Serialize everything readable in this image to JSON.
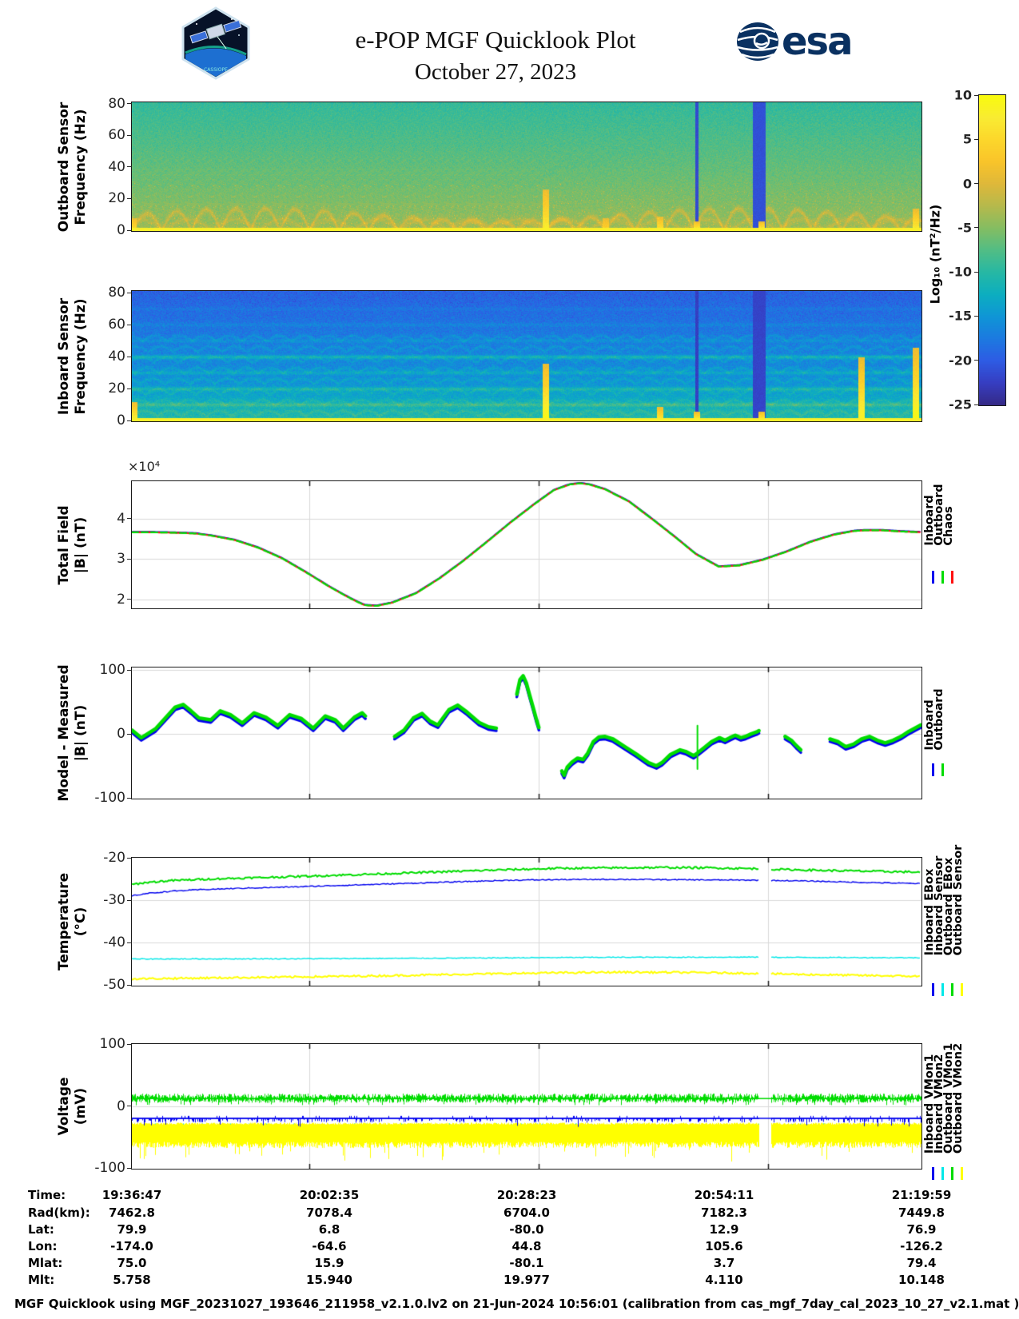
{
  "header": {
    "title": "e-POP MGF Quicklook Plot",
    "date": "October 27, 2023",
    "patch_label": "CASSIOPE",
    "esa_label": "esa"
  },
  "colorbar": {
    "label": "Log₁₀ (nT²/Hz)",
    "ticks": [
      "10",
      "5",
      "0",
      "-5",
      "-10",
      "-15",
      "-20",
      "-25"
    ],
    "range": [
      10,
      -25
    ]
  },
  "colors": {
    "blue": "#0000EE",
    "green": "#00DC00",
    "red": "#FF1010",
    "cyan": "#00E8E8",
    "yellow": "#FFFF00",
    "axis": "#262626",
    "grid": "#d9d9d9",
    "parula": [
      "#352a87",
      "#363ec2",
      "#2e5ce4",
      "#1c7ae0",
      "#0f96d6",
      "#0caec0",
      "#27b8a4",
      "#52bd85",
      "#85bd62",
      "#b6b94c",
      "#dfb83a",
      "#f9c42a",
      "#fcd72b",
      "#f9ec32",
      "#f9fb0e"
    ]
  },
  "table": {
    "rows": [
      {
        "label": "Time:",
        "values": [
          "19:36:47",
          "20:02:35",
          "20:28:23",
          "20:54:11",
          "21:19:59"
        ]
      },
      {
        "label": "Rad(km):",
        "values": [
          "7462.8",
          "7078.4",
          "6704.0",
          "7182.3",
          "7449.8"
        ]
      },
      {
        "label": "Lat:",
        "values": [
          "79.9",
          "6.8",
          "-80.0",
          "12.9",
          "76.9"
        ]
      },
      {
        "label": "Lon:",
        "values": [
          "-174.0",
          "-64.6",
          "44.8",
          "105.6",
          "-126.2"
        ]
      },
      {
        "label": "Mlat:",
        "values": [
          "75.0",
          "15.9",
          "-80.1",
          "3.7",
          "79.4"
        ]
      },
      {
        "label": "Mlt:",
        "values": [
          "5.758",
          "15.940",
          "19.977",
          "4.110",
          "10.148"
        ]
      }
    ]
  },
  "footer": "MGF Quicklook using MGF_20231027_193646_211958_v2.1.0.lv2 on 21-Jun-2024 10:56:01 (calibration from cas_mgf_7day_cal_2023_10_27_v2.1.mat )",
  "chart_data": [
    {
      "id": "outboard_spectrogram",
      "type": "heatmap",
      "ylabel": [
        "Outboard Sensor",
        "Frequency (Hz)"
      ],
      "yticks": [
        80,
        60,
        40,
        20,
        0
      ],
      "ylim": [
        0,
        81
      ],
      "clim": [
        -25,
        10
      ],
      "features": {
        "base_top": -9.2,
        "base_bottom": -3.8,
        "noise": 2.0,
        "stripes": [
          {
            "x": 0.716,
            "w": 2,
            "v": -22
          },
          {
            "x": 0.795,
            "w": 8,
            "v": -21.5
          }
        ],
        "bursts": [
          {
            "x": 0.002,
            "fmax": 8,
            "s": 5
          },
          {
            "x": 0.524,
            "fmax": 26,
            "s": 7
          },
          {
            "x": 0.6,
            "fmax": 8,
            "s": 4
          },
          {
            "x": 0.669,
            "fmax": 9,
            "s": 6
          },
          {
            "x": 0.716,
            "fmax": 6,
            "s": 8
          },
          {
            "x": 0.798,
            "fmax": 6,
            "s": 8
          },
          {
            "x": 0.993,
            "fmax": 14,
            "s": 7
          }
        ],
        "bottom_line": 7.5
      }
    },
    {
      "id": "inboard_spectrogram",
      "type": "heatmap",
      "ylabel": [
        "Inboard Sensor",
        "Frequency (Hz)"
      ],
      "yticks": [
        80,
        60,
        40,
        20,
        0
      ],
      "ylim": [
        0,
        81
      ],
      "clim": [
        -25,
        10
      ],
      "features": {
        "base_top": -19.5,
        "base_bottom": -13.5,
        "noise": 2.6,
        "low_band": {
          "fmax": 24,
          "boost": 3.5
        },
        "harmonics": {
          "freqs": [
            10,
            20,
            30,
            40,
            50,
            60,
            70
          ],
          "strengths": [
            3.5,
            3.0,
            2.6,
            4.0,
            1.6,
            1.3,
            1.0
          ]
        },
        "stripes": [
          {
            "x": 0.716,
            "w": 2,
            "v": -23
          },
          {
            "x": 0.795,
            "w": 8,
            "v": -22.5
          }
        ],
        "bursts": [
          {
            "x": 0.003,
            "fmax": 12,
            "s": 8
          },
          {
            "x": 0.524,
            "fmax": 36,
            "s": 9
          },
          {
            "x": 0.669,
            "fmax": 9,
            "s": 7
          },
          {
            "x": 0.716,
            "fmax": 6,
            "s": 8
          },
          {
            "x": 0.798,
            "fmax": 6,
            "s": 8
          },
          {
            "x": 0.925,
            "fmax": 40,
            "s": 8
          },
          {
            "x": 0.993,
            "fmax": 46,
            "s": 9
          }
        ],
        "bottom_line": 7.5
      }
    },
    {
      "id": "total_field",
      "type": "line",
      "ylabel": [
        "Total Field",
        "|B| (nT)"
      ],
      "exponent": "×10⁴",
      "yticks": [
        4,
        3,
        2
      ],
      "ylim": [
        1.8,
        4.92
      ],
      "xgrid": [
        0.2247,
        0.5157,
        0.8064
      ],
      "legend": [
        {
          "label": "Inboard",
          "color": "blue"
        },
        {
          "label": "Outboard",
          "color": "green"
        },
        {
          "label": "Chaos",
          "color": "red"
        }
      ],
      "series": [
        {
          "name": "|B| (1e4 nT)",
          "x": [
            0,
            0.02,
            0.05,
            0.08,
            0.1,
            0.13,
            0.16,
            0.19,
            0.22,
            0.25,
            0.27,
            0.285,
            0.295,
            0.31,
            0.33,
            0.36,
            0.39,
            0.42,
            0.45,
            0.48,
            0.51,
            0.535,
            0.555,
            0.568,
            0.58,
            0.6,
            0.63,
            0.66,
            0.69,
            0.715,
            0.744,
            0.77,
            0.8,
            0.83,
            0.86,
            0.89,
            0.915,
            0.93,
            0.95,
            0.975,
            1.0
          ],
          "y": [
            3.66,
            3.66,
            3.65,
            3.63,
            3.58,
            3.47,
            3.28,
            3.02,
            2.68,
            2.32,
            2.1,
            1.95,
            1.86,
            1.84,
            1.92,
            2.15,
            2.52,
            2.95,
            3.42,
            3.9,
            4.35,
            4.7,
            4.84,
            4.87,
            4.84,
            4.72,
            4.42,
            3.98,
            3.52,
            3.12,
            2.81,
            2.84,
            2.98,
            3.18,
            3.42,
            3.6,
            3.69,
            3.71,
            3.71,
            3.68,
            3.66
          ]
        }
      ]
    },
    {
      "id": "model_measured",
      "type": "line",
      "ylabel": [
        "Model - Measured",
        "|B| (nT)"
      ],
      "yticks": [
        100,
        0,
        -100
      ],
      "ylim": [
        -100,
        104
      ],
      "xgrid": [
        0.2247,
        0.5157,
        0.8064
      ],
      "legend": [
        {
          "label": "Inboard",
          "color": "blue"
        },
        {
          "label": "Outboard",
          "color": "green"
        }
      ],
      "blue_offset": -4,
      "segments": [
        [
          [
            0,
            6
          ],
          [
            0.012,
            -6
          ],
          [
            0.03,
            8
          ],
          [
            0.055,
            42
          ],
          [
            0.065,
            46
          ],
          [
            0.075,
            36
          ],
          [
            0.085,
            25
          ],
          [
            0.1,
            22
          ],
          [
            0.112,
            36
          ],
          [
            0.125,
            30
          ],
          [
            0.14,
            17
          ],
          [
            0.155,
            33
          ],
          [
            0.17,
            26
          ],
          [
            0.185,
            13
          ],
          [
            0.2,
            30
          ],
          [
            0.215,
            24
          ],
          [
            0.23,
            9
          ],
          [
            0.245,
            28
          ],
          [
            0.258,
            22
          ],
          [
            0.268,
            9
          ],
          [
            0.282,
            26
          ],
          [
            0.292,
            33
          ],
          [
            0.296,
            28
          ]
        ],
        [
          [
            0.333,
            -4
          ],
          [
            0.345,
            6
          ],
          [
            0.357,
            25
          ],
          [
            0.368,
            32
          ],
          [
            0.378,
            20
          ],
          [
            0.388,
            14
          ],
          [
            0.402,
            38
          ],
          [
            0.413,
            45
          ],
          [
            0.425,
            34
          ],
          [
            0.44,
            18
          ],
          [
            0.452,
            11
          ],
          [
            0.462,
            9
          ]
        ],
        [
          [
            0.488,
            62
          ],
          [
            0.492,
            85
          ],
          [
            0.496,
            91
          ],
          [
            0.5,
            80
          ],
          [
            0.504,
            62
          ],
          [
            0.509,
            40
          ],
          [
            0.513,
            22
          ],
          [
            0.516,
            10
          ]
        ],
        [
          [
            0.545,
            -58
          ],
          [
            0.548,
            -65
          ],
          [
            0.552,
            -52
          ],
          [
            0.558,
            -44
          ],
          [
            0.565,
            -38
          ],
          [
            0.572,
            -40
          ],
          [
            0.578,
            -30
          ],
          [
            0.585,
            -12
          ],
          [
            0.592,
            -5
          ],
          [
            0.6,
            -4
          ],
          [
            0.61,
            -8
          ],
          [
            0.625,
            -20
          ],
          [
            0.64,
            -32
          ],
          [
            0.655,
            -45
          ],
          [
            0.665,
            -50
          ],
          [
            0.672,
            -45
          ],
          [
            0.683,
            -32
          ],
          [
            0.695,
            -25
          ],
          [
            0.703,
            -28
          ],
          [
            0.712,
            -34
          ],
          [
            0.717,
            -30
          ],
          [
            0.725,
            -22
          ],
          [
            0.735,
            -12
          ],
          [
            0.745,
            -6
          ],
          [
            0.752,
            -10
          ],
          [
            0.758,
            -6
          ],
          [
            0.765,
            -2
          ],
          [
            0.772,
            -6
          ],
          [
            0.778,
            -4
          ],
          [
            0.785,
            0
          ],
          [
            0.792,
            3
          ],
          [
            0.795,
            5
          ]
        ],
        [
          [
            0.828,
            -4
          ],
          [
            0.836,
            -10
          ],
          [
            0.842,
            -18
          ],
          [
            0.848,
            -25
          ]
        ],
        [
          [
            0.885,
            -8
          ],
          [
            0.895,
            -12
          ],
          [
            0.905,
            -20
          ],
          [
            0.915,
            -16
          ],
          [
            0.925,
            -8
          ],
          [
            0.935,
            -4
          ],
          [
            0.945,
            -10
          ],
          [
            0.955,
            -14
          ],
          [
            0.965,
            -10
          ],
          [
            0.975,
            -4
          ],
          [
            0.985,
            4
          ],
          [
            1.0,
            14
          ]
        ]
      ],
      "spike": {
        "x": 0.717,
        "y0": -55,
        "y1": 13
      }
    },
    {
      "id": "temperature",
      "type": "line",
      "ylabel": [
        "Temperature",
        "(°C)"
      ],
      "yticks": [
        -20,
        -30,
        -40,
        -50
      ],
      "ylim": [
        -50,
        -20
      ],
      "xgrid": [
        0.2247,
        0.5157,
        0.8064
      ],
      "gaps": [
        [
          0.795,
          0.81
        ]
      ],
      "legend": [
        {
          "label": "Inboard EBox",
          "color": "blue"
        },
        {
          "label": "Inboard Sensor",
          "color": "cyan"
        },
        {
          "label": "Outboard EBox",
          "color": "green"
        },
        {
          "label": "Outboard Sensor",
          "color": "yellow"
        }
      ],
      "series": [
        {
          "name": "Inboard EBox",
          "color": "blue",
          "jitter": 0.12,
          "x": [
            0,
            0.02,
            0.05,
            0.09,
            0.14,
            0.2,
            0.27,
            0.34,
            0.41,
            0.48,
            0.55,
            0.62,
            0.7,
            0.795,
            0.81,
            0.86,
            0.92,
            1.0
          ],
          "y": [
            -29.0,
            -28.4,
            -27.9,
            -27.5,
            -27.2,
            -26.9,
            -26.5,
            -26.1,
            -25.7,
            -25.3,
            -25.15,
            -25.1,
            -25.2,
            -25.3,
            -25.35,
            -25.5,
            -25.8,
            -26.1
          ]
        },
        {
          "name": "Outboard EBox",
          "color": "green",
          "jitter": 0.22,
          "x": [
            0,
            0.02,
            0.05,
            0.1,
            0.16,
            0.23,
            0.3,
            0.38,
            0.46,
            0.54,
            0.6,
            0.68,
            0.74,
            0.795,
            0.81,
            0.88,
            0.94,
            1.0
          ],
          "y": [
            -26.3,
            -25.8,
            -25.4,
            -25.0,
            -24.7,
            -24.3,
            -23.9,
            -23.4,
            -22.9,
            -22.5,
            -22.4,
            -22.3,
            -22.4,
            -22.6,
            -22.7,
            -23.0,
            -23.2,
            -23.4
          ]
        },
        {
          "name": "Inboard Sensor",
          "color": "cyan",
          "jitter": 0.1,
          "x": [
            0,
            0.2,
            0.4,
            0.6,
            0.795,
            0.81,
            1.0
          ],
          "y": [
            -43.9,
            -43.85,
            -43.7,
            -43.5,
            -43.45,
            -43.5,
            -43.6
          ]
        },
        {
          "name": "Outboard Sensor",
          "color": "yellow",
          "jitter": 0.22,
          "x": [
            0,
            0.08,
            0.18,
            0.3,
            0.42,
            0.52,
            0.62,
            0.72,
            0.795,
            0.81,
            0.9,
            1.0
          ],
          "y": [
            -48.6,
            -48.4,
            -48.2,
            -47.9,
            -47.5,
            -47.2,
            -47.0,
            -47.1,
            -47.3,
            -47.4,
            -47.7,
            -48.0
          ]
        }
      ]
    },
    {
      "id": "voltage",
      "type": "noise",
      "ylabel": [
        "Voltage",
        "(mV)"
      ],
      "yticks": [
        100,
        0,
        -100
      ],
      "ylim": [
        -100,
        100
      ],
      "xgrid": [
        0.2247,
        0.5157,
        0.8064
      ],
      "gaps": [
        [
          0.795,
          0.81
        ]
      ],
      "legend": [
        {
          "label": "Inboard VMon1",
          "color": "blue"
        },
        {
          "label": "Inboard VMon2",
          "color": "cyan"
        },
        {
          "label": "Outboard VMon1",
          "color": "green"
        },
        {
          "label": "Outboard VMon2",
          "color": "yellow"
        }
      ],
      "bands": {
        "green_base": 12,
        "blue_base": -20,
        "yellow_top": -27,
        "yellow_bottom": -58,
        "cyan_top": -28,
        "cyan_bottom": -48
      }
    }
  ]
}
